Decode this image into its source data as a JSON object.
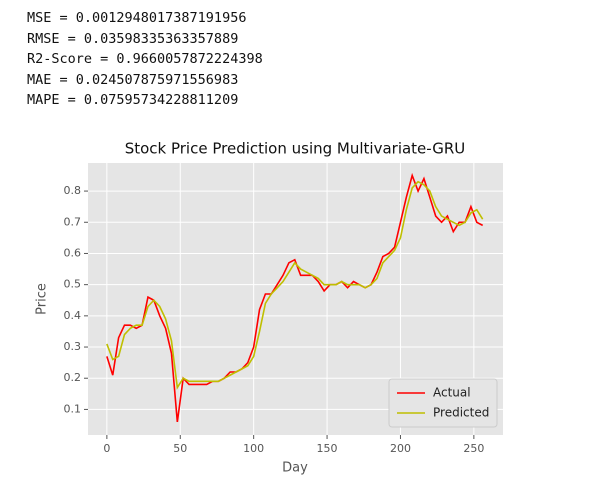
{
  "output_lines": [
    "MSE = 0.0012948017387191956",
    "RMSE = 0.03598335363357889",
    "R2-Score = 0.9660057872224398",
    "MAE = 0.024507875971556983",
    "MAPE = 0.07595734228811209"
  ],
  "chart_data": {
    "type": "line",
    "title": "Stock Price Prediction using Multivariate-GRU",
    "xlabel": "Day",
    "ylabel": "Price",
    "x": [
      0,
      4,
      8,
      12,
      16,
      20,
      24,
      28,
      32,
      36,
      40,
      44,
      48,
      52,
      56,
      60,
      64,
      68,
      72,
      76,
      80,
      84,
      88,
      92,
      96,
      100,
      104,
      108,
      112,
      116,
      120,
      124,
      128,
      132,
      136,
      140,
      144,
      148,
      152,
      156,
      160,
      164,
      168,
      172,
      176,
      180,
      184,
      188,
      192,
      196,
      200,
      204,
      208,
      212,
      216,
      220,
      224,
      228,
      232,
      236,
      240,
      244,
      248,
      252,
      256
    ],
    "series": [
      {
        "name": "Actual",
        "color": "#ff0000",
        "values": [
          0.27,
          0.21,
          0.33,
          0.37,
          0.37,
          0.36,
          0.37,
          0.46,
          0.45,
          0.4,
          0.36,
          0.28,
          0.06,
          0.2,
          0.18,
          0.18,
          0.18,
          0.18,
          0.19,
          0.19,
          0.2,
          0.22,
          0.22,
          0.23,
          0.25,
          0.3,
          0.42,
          0.47,
          0.47,
          0.5,
          0.53,
          0.57,
          0.58,
          0.53,
          0.53,
          0.53,
          0.51,
          0.48,
          0.5,
          0.5,
          0.51,
          0.49,
          0.51,
          0.5,
          0.49,
          0.5,
          0.54,
          0.59,
          0.6,
          0.62,
          0.7,
          0.78,
          0.85,
          0.8,
          0.84,
          0.78,
          0.72,
          0.7,
          0.72,
          0.67,
          0.7,
          0.7,
          0.75,
          0.7,
          0.69
        ]
      },
      {
        "name": "Predicted",
        "color": "#bfbf00",
        "values": [
          0.31,
          0.26,
          0.27,
          0.34,
          0.36,
          0.37,
          0.37,
          0.43,
          0.45,
          0.43,
          0.39,
          0.32,
          0.17,
          0.2,
          0.19,
          0.19,
          0.19,
          0.19,
          0.19,
          0.19,
          0.2,
          0.21,
          0.22,
          0.23,
          0.24,
          0.27,
          0.35,
          0.44,
          0.47,
          0.49,
          0.51,
          0.54,
          0.57,
          0.55,
          0.54,
          0.53,
          0.52,
          0.5,
          0.5,
          0.5,
          0.51,
          0.5,
          0.5,
          0.5,
          0.49,
          0.5,
          0.52,
          0.57,
          0.59,
          0.61,
          0.65,
          0.74,
          0.81,
          0.83,
          0.82,
          0.8,
          0.75,
          0.72,
          0.71,
          0.7,
          0.69,
          0.7,
          0.73,
          0.74,
          0.71
        ]
      }
    ],
    "xlim": [
      -12.85,
      269.85
    ],
    "ylim": [
      0.018,
      0.89
    ],
    "xticks": [
      0,
      50,
      100,
      150,
      200,
      250
    ],
    "yticks": [
      0.1,
      0.2,
      0.3,
      0.4,
      0.5,
      0.6,
      0.7,
      0.8
    ],
    "grid": true,
    "legend": "lower right"
  }
}
